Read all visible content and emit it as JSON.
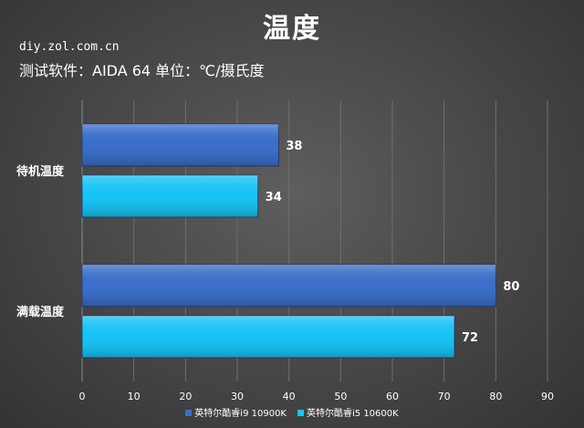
{
  "chart_data": {
    "type": "bar",
    "orientation": "horizontal",
    "title": "温度",
    "subtitle": "测试软件：AIDA 64 单位：℃/摄氏度",
    "categories": [
      "待机温度",
      "满载温度"
    ],
    "series": [
      {
        "name": "英特尔酷睿i9 10900K",
        "color": "#3b6fc9",
        "values": [
          38,
          80
        ]
      },
      {
        "name": "英特尔酷睿i5 10600K",
        "color": "#19c3f5",
        "values": [
          34,
          72
        ]
      }
    ],
    "xlim": [
      0,
      90
    ],
    "xticks": [
      "0",
      "10",
      "20",
      "30",
      "40",
      "50",
      "60",
      "70",
      "80",
      "90"
    ],
    "grid": true,
    "legend_position": "bottom",
    "data_labels": true
  },
  "watermark": "diy.zol.com.cn"
}
